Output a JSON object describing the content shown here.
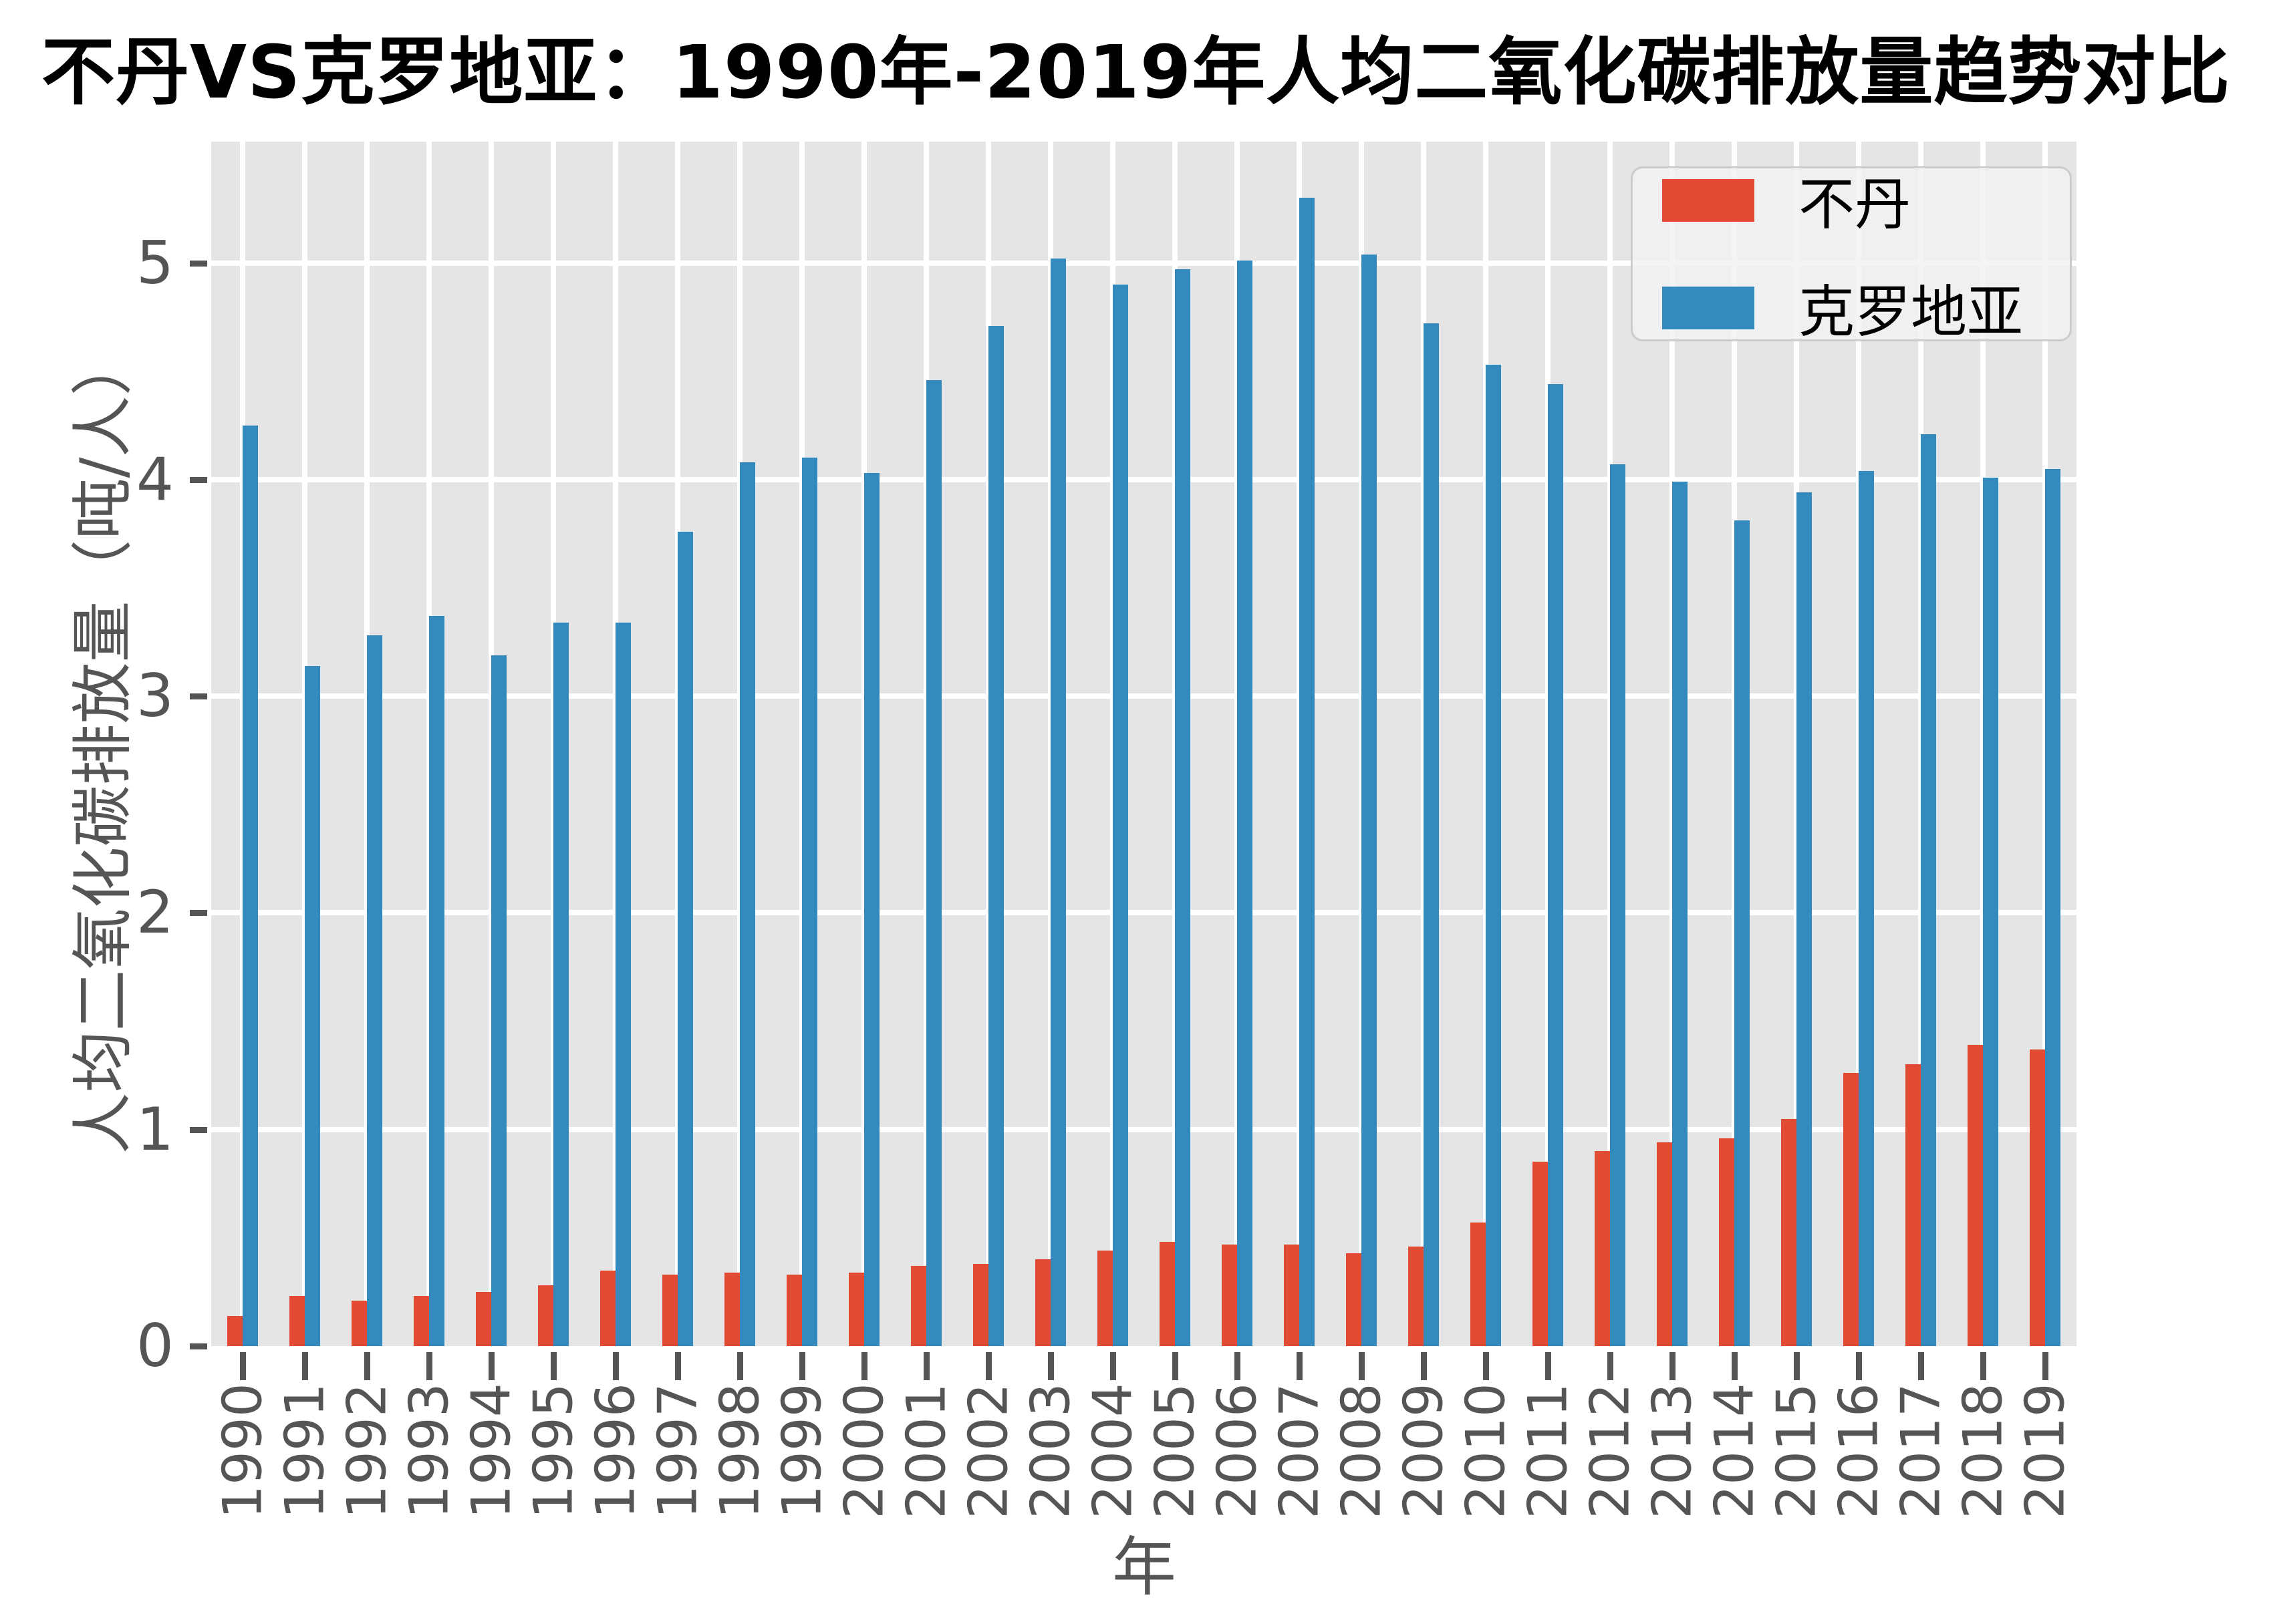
{
  "chart_data": {
    "type": "bar",
    "title": "不丹VS克罗地亚：1990年-2019年人均二氧化碳排放量趋势对比",
    "xlabel": "年",
    "ylabel": "人均二氧化碳排放量（吨/人）",
    "categories": [
      "1990",
      "1991",
      "1992",
      "1993",
      "1994",
      "1995",
      "1996",
      "1997",
      "1998",
      "1999",
      "2000",
      "2001",
      "2002",
      "2003",
      "2004",
      "2005",
      "2006",
      "2007",
      "2008",
      "2009",
      "2010",
      "2011",
      "2012",
      "2013",
      "2014",
      "2015",
      "2016",
      "2017",
      "2018",
      "2019"
    ],
    "series": [
      {
        "id": "bhutan",
        "name": "不丹",
        "color": "#E24A33",
        "values": [
          0.14,
          0.23,
          0.21,
          0.23,
          0.25,
          0.28,
          0.35,
          0.33,
          0.34,
          0.33,
          0.34,
          0.37,
          0.38,
          0.4,
          0.44,
          0.48,
          0.47,
          0.47,
          0.43,
          0.46,
          0.57,
          0.85,
          0.9,
          0.94,
          0.96,
          1.05,
          1.26,
          1.3,
          1.39,
          1.37
        ]
      },
      {
        "id": "croatia",
        "name": "克罗地亚",
        "color": "#348ABD",
        "values": [
          4.25,
          3.14,
          3.28,
          3.37,
          3.19,
          3.34,
          3.34,
          3.76,
          4.08,
          4.1,
          4.03,
          4.46,
          4.71,
          5.02,
          4.9,
          4.97,
          5.01,
          5.3,
          5.04,
          4.72,
          4.53,
          4.44,
          4.07,
          3.99,
          3.81,
          3.94,
          4.04,
          4.21,
          4.01,
          4.05
        ]
      }
    ],
    "ylim": [
      0,
      5.56
    ],
    "yticks": [
      "0",
      "1",
      "2",
      "3",
      "4",
      "5"
    ],
    "grid": true,
    "legend_position": "upper right"
  },
  "colors": {
    "figure_background": "#FFFFFF",
    "plot_background": "#E5E5E5",
    "gridline": "#FFFFFF",
    "tick_text": "#555555",
    "title_text": "#000000",
    "legend_border": "#CCCCCC"
  }
}
